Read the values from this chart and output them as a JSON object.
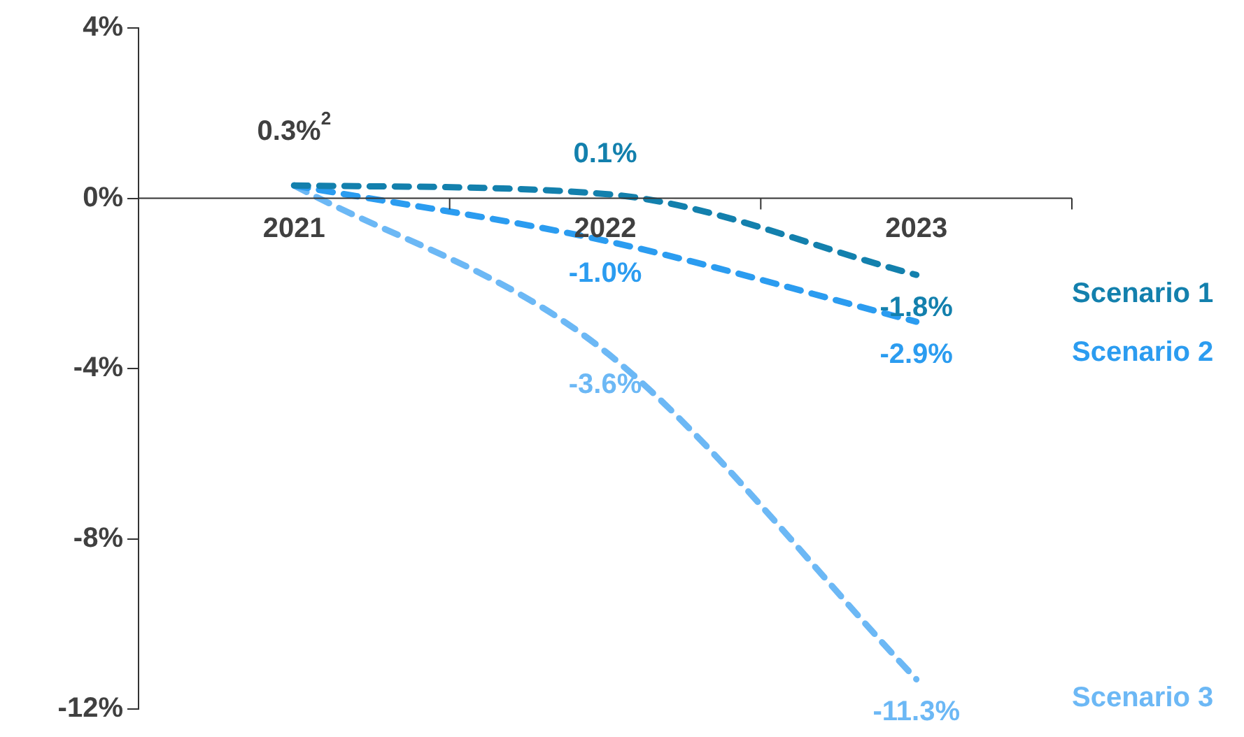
{
  "chart_data": {
    "type": "line",
    "categories": [
      "2021",
      "2022",
      "2023"
    ],
    "series": [
      {
        "name": "Scenario 1",
        "color": "#1380ad",
        "values": [
          0.3,
          0.1,
          -1.8
        ],
        "value_labels": [
          null,
          "0.1%",
          "-1.8%"
        ]
      },
      {
        "name": "Scenario 2",
        "color": "#2b9cf0",
        "values": [
          0.3,
          -1.0,
          -2.9
        ],
        "value_labels": [
          null,
          "-1.0%",
          "-2.9%"
        ]
      },
      {
        "name": "Scenario 3",
        "color": "#6cb8f5",
        "values": [
          0.3,
          -3.6,
          -11.3
        ],
        "value_labels": [
          null,
          "-3.6%",
          "-11.3%"
        ]
      }
    ],
    "annotations": [
      {
        "text": "0.3%$^{2}$",
        "x": "2021",
        "y": 0.3
      }
    ],
    "ylim": [
      -12,
      4
    ],
    "yticks": [
      {
        "value": -12,
        "label": "-12%"
      },
      {
        "value": -8,
        "label": "-8%"
      },
      {
        "value": -4,
        "label": "-4%"
      },
      {
        "value": 0,
        "label": "0%"
      },
      {
        "value": 4,
        "label": "4%"
      }
    ],
    "grid": false,
    "marker": "none",
    "line_style": "dashed"
  }
}
